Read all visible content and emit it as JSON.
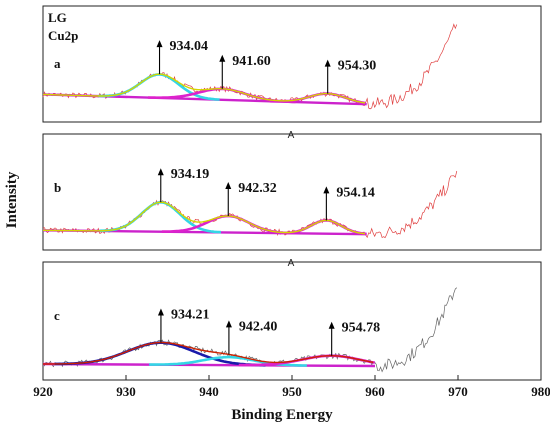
{
  "chart_data": {
    "type": "line",
    "title_lines": [
      "LG",
      "Cu2p"
    ],
    "xlabel": "Binding Energy",
    "ylabel": "Intensity",
    "xlim": [
      920,
      980
    ],
    "x_ticks": [
      920,
      930,
      940,
      950,
      960,
      970,
      980
    ],
    "separator_marks": [
      "A",
      "A"
    ],
    "panels": [
      {
        "label": "a",
        "data_color": "#e04040",
        "background": [
          [
            920,
            0.55
          ],
          [
            959,
            0.3
          ]
        ],
        "envelope_color": "#d4d400",
        "peaks": [
          {
            "value": "934.04",
            "center": 934.04,
            "height": 0.6,
            "width": 2.3,
            "color": "#33d6e6"
          },
          {
            "value": "941.60",
            "center": 941.6,
            "height": 0.28,
            "width": 2.8,
            "color": "#dd22cc"
          },
          {
            "value": "954.30",
            "center": 954.3,
            "height": 0.24,
            "width": 2.2,
            "color": "#dd22cc"
          }
        ],
        "tail_end": [
          970,
          2.4
        ]
      },
      {
        "label": "b",
        "data_color": "#e04040",
        "background": [
          [
            920,
            0.35
          ],
          [
            959,
            0.25
          ]
        ],
        "envelope_color": "#d4d400",
        "peaks": [
          {
            "value": "934.19",
            "center": 934.19,
            "height": 0.75,
            "width": 2.3,
            "color": "#33d6e6"
          },
          {
            "value": "942.32",
            "center": 942.32,
            "height": 0.42,
            "width": 2.5,
            "color": "#dd22cc"
          },
          {
            "value": "954.14",
            "center": 954.14,
            "height": 0.34,
            "width": 1.8,
            "color": "#dd22cc"
          }
        ],
        "tail_end": [
          970,
          1.9
        ]
      },
      {
        "label": "c",
        "data_color": "#666666",
        "background": [
          [
            920,
            0.25
          ],
          [
            960,
            0.2
          ]
        ],
        "envelope_color": "#cc2200",
        "peaks": [
          {
            "value": "934.21",
            "center": 934.21,
            "height": 0.55,
            "width": 4.0,
            "color": "#1a1aaa"
          },
          {
            "value": "942.40",
            "center": 942.4,
            "height": 0.2,
            "width": 3.0,
            "color": "#33d6e6"
          },
          {
            "value": "954.78",
            "center": 954.78,
            "height": 0.25,
            "width": 3.5,
            "color": "#dd22cc"
          }
        ],
        "tail_end": [
          970,
          2.3
        ]
      }
    ]
  }
}
